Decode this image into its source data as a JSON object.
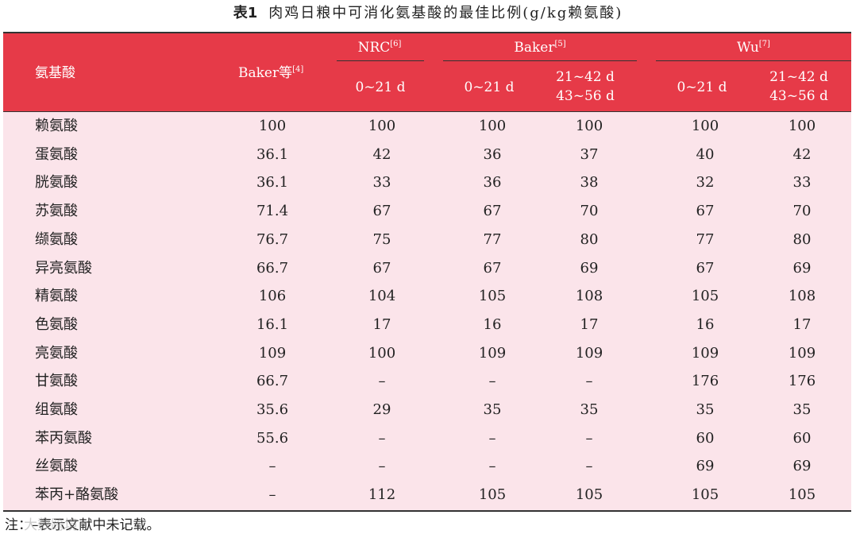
{
  "caption": {
    "label": "表1",
    "title": "肉鸡日粮中可消化氨基酸的最佳比例(g/kg赖氨酸)"
  },
  "header": {
    "amino": "氨基酸",
    "baker_etal": "Baker等",
    "baker_etal_ref": "[4]",
    "nrc": "NRC",
    "nrc_ref": "[6]",
    "baker": "Baker",
    "baker_ref": "[5]",
    "wu": "Wu",
    "wu_ref": "[7]",
    "nrc_sub": "0~21 d",
    "baker_sub1": "0~21 d",
    "baker_sub2_line1": "21~42 d",
    "baker_sub2_line2": "43~56 d",
    "wu_sub1": "0~21 d",
    "wu_sub2_line1": "21~42 d",
    "wu_sub2_line2": "43~56 d"
  },
  "rows": [
    [
      "赖氨酸",
      "100",
      "100",
      "100",
      "100",
      "100",
      "100"
    ],
    [
      "蛋氨酸",
      "36.1",
      "42",
      "36",
      "37",
      "40",
      "42"
    ],
    [
      "胱氨酸",
      "36.1",
      "33",
      "36",
      "38",
      "32",
      "33"
    ],
    [
      "苏氨酸",
      "71.4",
      "67",
      "67",
      "70",
      "67",
      "70"
    ],
    [
      "缬氨酸",
      "76.7",
      "75",
      "77",
      "80",
      "77",
      "80"
    ],
    [
      "异亮氨酸",
      "66.7",
      "67",
      "67",
      "69",
      "67",
      "69"
    ],
    [
      "精氨酸",
      "106",
      "104",
      "105",
      "108",
      "105",
      "108"
    ],
    [
      "色氨酸",
      "16.1",
      "17",
      "16",
      "17",
      "16",
      "17"
    ],
    [
      "亮氨酸",
      "109",
      "100",
      "109",
      "109",
      "109",
      "109"
    ],
    [
      "甘氨酸",
      "66.7",
      "–",
      "–",
      "–",
      "176",
      "176"
    ],
    [
      "组氨酸",
      "35.6",
      "29",
      "35",
      "35",
      "35",
      "35"
    ],
    [
      "苯丙氨酸",
      "55.6",
      "–",
      "–",
      "–",
      "60",
      "60"
    ],
    [
      "丝氨酸",
      "–",
      "–",
      "–",
      "–",
      "69",
      "69"
    ],
    [
      "苯丙+酪氨酸",
      "–",
      "112",
      "105",
      "105",
      "105",
      "105"
    ]
  ],
  "note": "注：–表示文献中未记载。",
  "watermark": "大数跨境",
  "colors": {
    "header_bg": "#e63a48",
    "body_bg": "#fbe4ea"
  }
}
